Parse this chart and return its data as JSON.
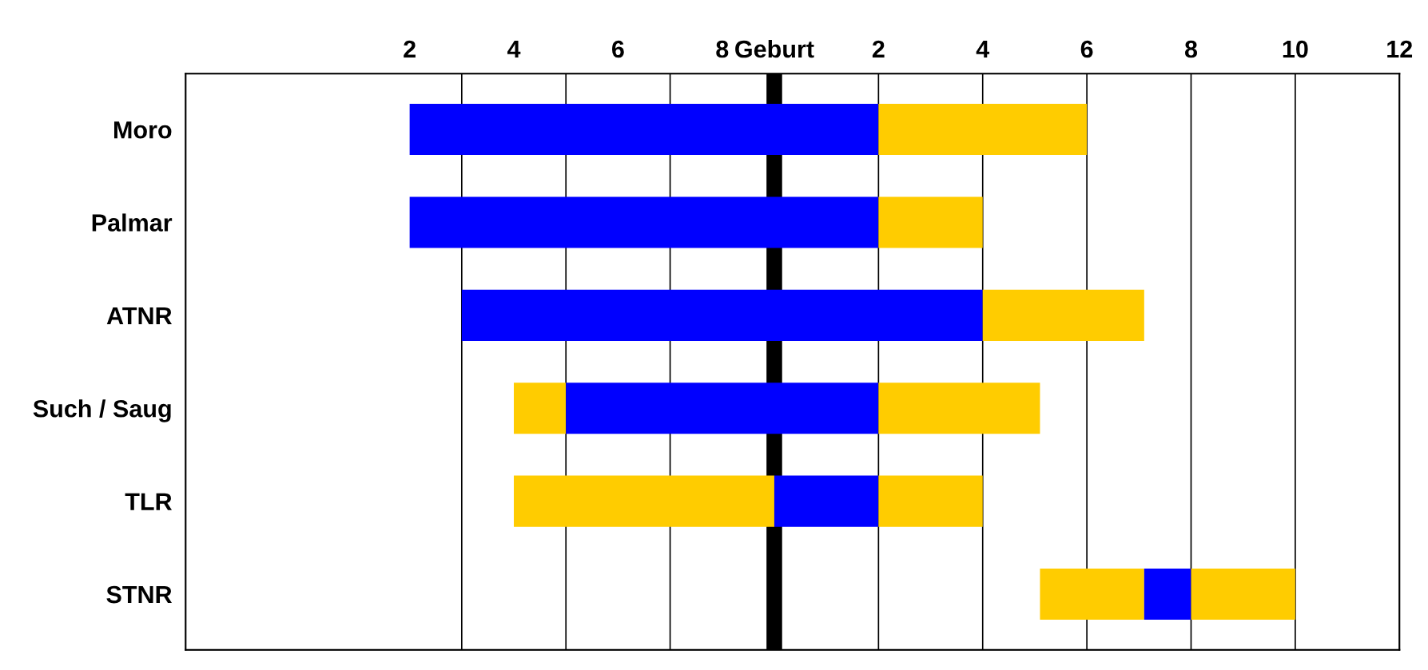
{
  "chart_data": {
    "type": "bar",
    "orientation": "horizontal",
    "categories": [
      "Moro",
      "Palmar",
      "ATNR",
      "Such / Saug",
      "TLR",
      "STNR"
    ],
    "series": [
      {
        "values": [
          9,
          9,
          10,
          1,
          5,
          2
        ],
        "base": [
          -7,
          -7,
          -6,
          -5,
          -5,
          5.1
        ],
        "colors": [
          "#0000ff",
          "#0000ff",
          "#0000ff",
          "#ffcc00",
          "#ffcc00",
          "#ffcc00"
        ]
      },
      {
        "values": [
          4,
          2,
          3.1,
          6,
          2,
          0.9
        ],
        "base": [
          2,
          2,
          4,
          -4,
          0,
          7.1
        ],
        "colors": [
          "#ffcc00",
          "#ffcc00",
          "#ffcc00",
          "#0000ff",
          "#0000ff",
          "#0000ff"
        ]
      },
      {
        "values": [
          null,
          null,
          null,
          3.1,
          2,
          2
        ],
        "base": [
          null,
          null,
          null,
          2,
          2,
          8
        ],
        "colors": [
          "#ffcc00",
          "#ffcc00",
          "#ffcc00",
          "#ffcc00",
          "#ffcc00",
          "#ffcc00"
        ]
      }
    ],
    "xlim": [
      -11.3,
      12
    ],
    "xticks": [
      2,
      4,
      6,
      8,
      10,
      12
    ],
    "x2lim": [
      -2.3,
      21
    ],
    "x2ticks": [
      2,
      4,
      6,
      8
    ],
    "ref_lines": [
      {
        "axis": "x",
        "value": -6,
        "color": "#000000"
      },
      {
        "axis": "x",
        "value": -4,
        "color": "#000000"
      },
      {
        "axis": "x",
        "value": -2,
        "color": "#000000"
      },
      {
        "axis": "x",
        "value": 2,
        "color": "#000000"
      },
      {
        "axis": "x",
        "value": 4,
        "color": "#000000"
      },
      {
        "axis": "x",
        "value": 6,
        "color": "#000000"
      },
      {
        "axis": "x",
        "value": 8,
        "color": "#000000"
      },
      {
        "axis": "x",
        "value": 10,
        "color": "#000000"
      }
    ],
    "bands": [
      {
        "axis": "x",
        "from": -0.15,
        "to": 0.15,
        "label": "Geburt",
        "color": "#000000"
      }
    ],
    "grid": false,
    "legend": false
  }
}
